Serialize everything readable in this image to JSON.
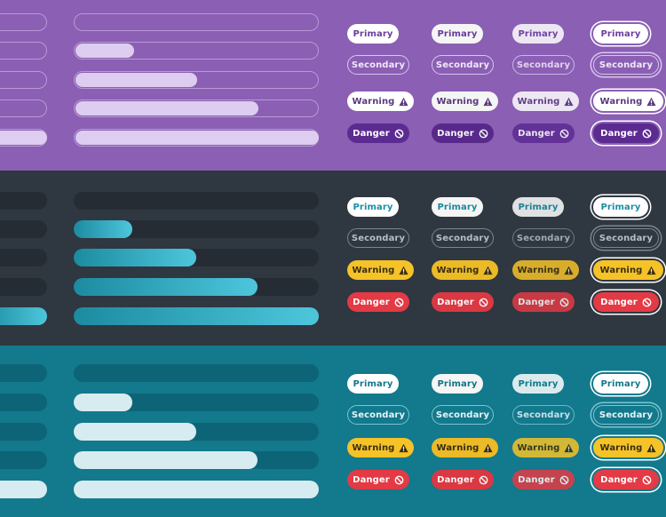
{
  "sections": [
    {
      "theme": "purple",
      "progress": [
        0,
        0.24,
        0.5,
        0.75,
        1
      ],
      "colors": {
        "bg": "#8a5fb4",
        "primary_bg": "#ffffff",
        "primary_text": "#6b3fa0",
        "secondary_border": "#d9c6ee",
        "secondary_text": "#f1e8fa",
        "warning_bg": "#ffffff",
        "warning_text": "#5a3a80",
        "danger_bg": "#5c2b91",
        "danger_text": "#ffffff"
      }
    },
    {
      "theme": "dark",
      "progress": [
        0,
        0.24,
        0.5,
        0.75,
        1
      ],
      "colors": {
        "bg": "#2f3740",
        "primary_bg": "#ffffff",
        "primary_text": "#1a8fa4",
        "secondary_border": "#7b858f",
        "secondary_text": "#b6bec6",
        "warning_bg": "#f5c228",
        "warning_text": "#3a2f10",
        "danger_bg": "#e33a45",
        "danger_text": "#ffffff"
      }
    },
    {
      "theme": "teal",
      "progress": [
        0,
        0.24,
        0.5,
        0.75,
        1
      ],
      "colors": {
        "bg": "#13798c",
        "primary_bg": "#ffffff",
        "primary_text": "#13798c",
        "secondary_border": "#7cc4d1",
        "secondary_text": "#e6f5f8",
        "warning_bg": "#f5c228",
        "warning_text": "#3a2f10",
        "danger_bg": "#e33a45",
        "danger_text": "#ffffff"
      }
    }
  ],
  "buttons": {
    "primary": "Primary",
    "secondary": "Secondary",
    "warning": "Warning",
    "danger": "Danger"
  },
  "button_states": [
    "default",
    "hover",
    "active",
    "focus"
  ],
  "icons": {
    "warning": "warning-triangle-icon",
    "danger": "prohibited-icon"
  }
}
